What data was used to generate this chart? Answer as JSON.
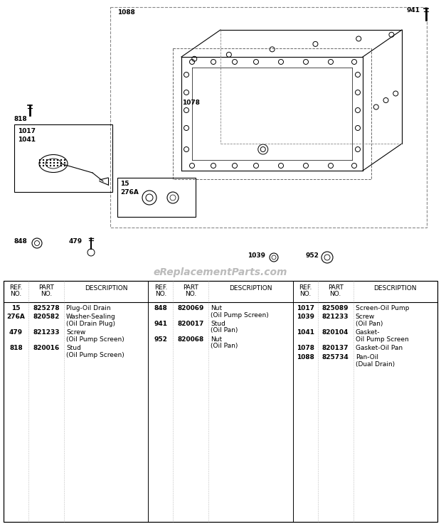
{
  "bg_color": "#ffffff",
  "watermark": "eReplacementParts.com",
  "watermark_color": "#bbbbbb",
  "col1_parts": [
    {
      "ref": "15",
      "part": "825278",
      "desc1": "Plug-Oil Drain",
      "desc2": ""
    },
    {
      "ref": "276A",
      "part": "820582",
      "desc1": "Washer-Sealing",
      "desc2": "(Oil Drain Plug)"
    },
    {
      "ref": "479",
      "part": "821233",
      "desc1": "Screw",
      "desc2": "(Oil Pump Screen)"
    },
    {
      "ref": "818",
      "part": "820016",
      "desc1": "Stud",
      "desc2": "(Oil Pump Screen)"
    }
  ],
  "col2_parts": [
    {
      "ref": "848",
      "part": "820069",
      "desc1": "Nut",
      "desc2": "(Oil Pump Screen)"
    },
    {
      "ref": "941",
      "part": "820017",
      "desc1": "Stud",
      "desc2": "(Oil Pan)"
    },
    {
      "ref": "952",
      "part": "820068",
      "desc1": "Nut",
      "desc2": "(Oil Pan)"
    }
  ],
  "col3_parts": [
    {
      "ref": "1017",
      "part": "825089",
      "desc1": "Screen-Oil Pump",
      "desc2": ""
    },
    {
      "ref": "1039",
      "part": "821233",
      "desc1": "Screw",
      "desc2": "(Oil Pan)"
    },
    {
      "ref": "1041",
      "part": "820104",
      "desc1": "Gasket-",
      "desc2": "Oil Pump Screen"
    },
    {
      "ref": "1078",
      "part": "820137",
      "desc1": "Gasket-Oil Pan",
      "desc2": ""
    },
    {
      "ref": "1088",
      "part": "825734",
      "desc1": "Pan-Oil",
      "desc2": "(Dual Drain)"
    }
  ]
}
